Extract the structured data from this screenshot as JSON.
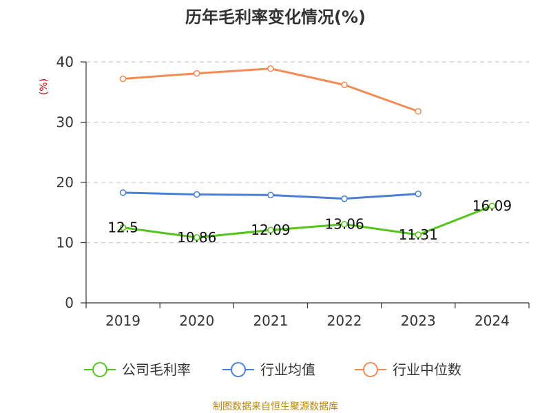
{
  "chart_data": {
    "type": "line",
    "title": "历年毛利率变化情况(%)",
    "ylabel": "(%)",
    "xlabel": "",
    "categories": [
      "2019",
      "2020",
      "2021",
      "2022",
      "2023",
      "2024"
    ],
    "ylim": [
      0,
      40
    ],
    "yticks": [
      0,
      10,
      20,
      30,
      40
    ],
    "grid": true,
    "legend_position": "bottom",
    "series": [
      {
        "name": "公司毛利率",
        "color": "#52c41a",
        "values": [
          12.5,
          10.86,
          12.09,
          13.06,
          11.31,
          16.09
        ],
        "labels": [
          "12.5",
          "10.86",
          "12.09",
          "13.06",
          "11.31",
          "16.09"
        ]
      },
      {
        "name": "行业均值",
        "color": "#4a7fd6",
        "values": [
          18.3,
          18.0,
          17.9,
          17.3,
          18.1,
          null
        ]
      },
      {
        "name": "行业中位数",
        "color": "#f28b54",
        "values": [
          37.2,
          38.1,
          38.9,
          36.2,
          31.8,
          null
        ]
      }
    ]
  },
  "source": "制图数据来自恒生聚源数据库"
}
